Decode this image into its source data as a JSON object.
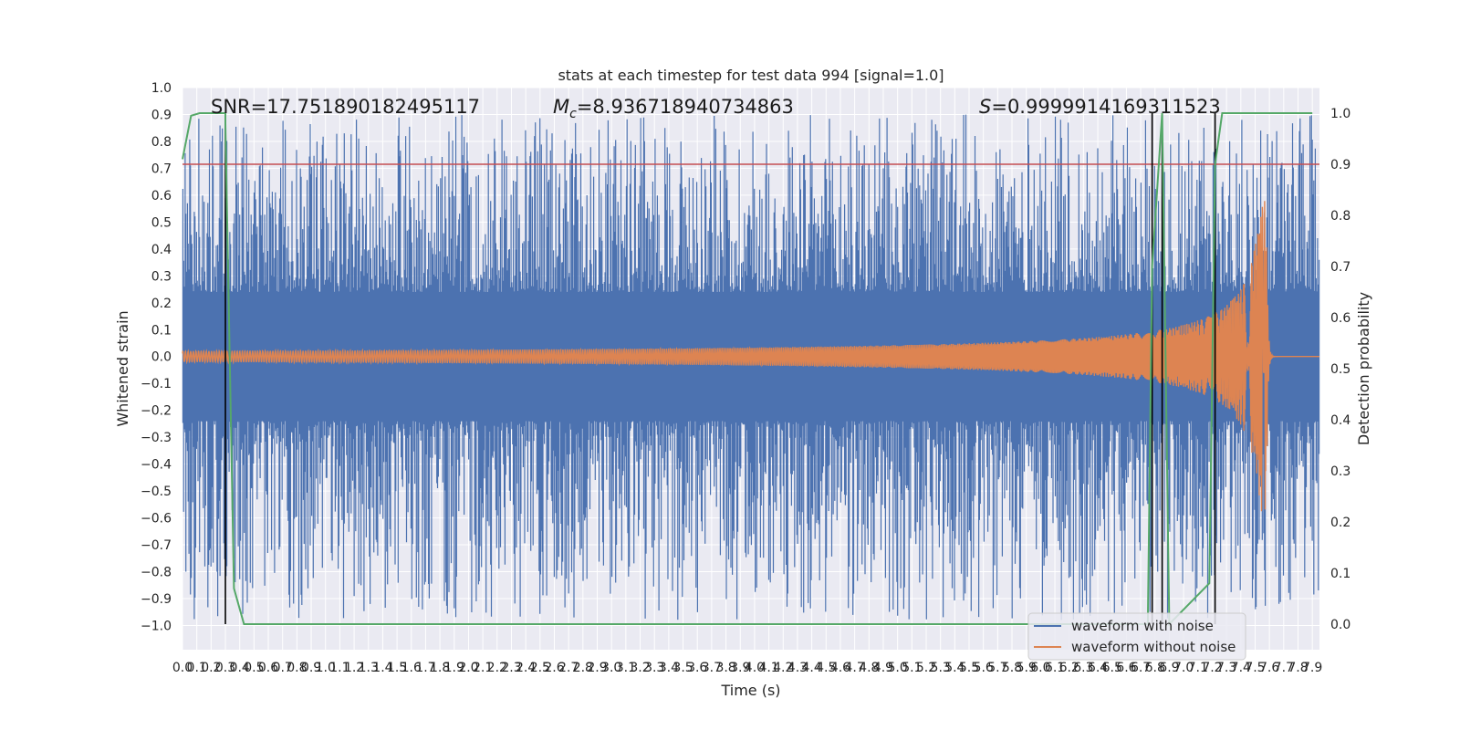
{
  "chart_data": {
    "type": "line",
    "title": "stats at each timestep for test data 994 [signal=1.0]",
    "xlabel": "Time (s)",
    "ylabel_left": "Whitened strain",
    "ylabel_right": "Detection probability",
    "xlim": [
      0,
      7.95
    ],
    "ylim_left": [
      -1.09,
      1.0
    ],
    "ylim_right": [
      -0.05,
      1.05
    ],
    "x_ticks": [
      "0.0",
      "0.1",
      "0.2",
      "0.3",
      "0.4",
      "0.5",
      "0.6",
      "0.7",
      "0.8",
      "0.9",
      "1.0",
      "1.1",
      "1.2",
      "1.3",
      "1.4",
      "1.5",
      "1.6",
      "1.7",
      "1.8",
      "1.9",
      "2.0",
      "2.1",
      "2.2",
      "2.3",
      "2.4",
      "2.5",
      "2.6",
      "2.7",
      "2.8",
      "2.9",
      "3.0",
      "3.1",
      "3.2",
      "3.3",
      "3.4",
      "3.5",
      "3.6",
      "3.7",
      "3.8",
      "3.9",
      "4.0",
      "4.1",
      "4.2",
      "4.3",
      "4.4",
      "4.5",
      "4.6",
      "4.7",
      "4.8",
      "4.9",
      "5.0",
      "5.1",
      "5.2",
      "5.3",
      "5.4",
      "5.5",
      "5.6",
      "5.7",
      "5.8",
      "5.9",
      "6.0",
      "6.1",
      "6.2",
      "6.3",
      "6.4",
      "6.5",
      "6.6",
      "6.7",
      "6.8",
      "6.9",
      "7.0",
      "7.1",
      "7.2",
      "7.3",
      "7.4",
      "7.5",
      "7.6",
      "7.7",
      "7.8",
      "7.9"
    ],
    "y_ticks_left": [
      "1.0",
      "0.9",
      "0.8",
      "0.7",
      "0.6",
      "0.5",
      "0.4",
      "0.3",
      "0.2",
      "0.1",
      "0.0",
      "−0.1",
      "−0.2",
      "−0.3",
      "−0.4",
      "−0.5",
      "−0.6",
      "−0.7",
      "−0.8",
      "−0.9",
      "−1.0"
    ],
    "y_ticks_right": [
      "1.0",
      "0.9",
      "0.8",
      "0.7",
      "0.6",
      "0.5",
      "0.4",
      "0.3",
      "0.2",
      "0.1",
      "0.0"
    ],
    "annotations": {
      "snr": "SNR=17.751890182495117",
      "mc": "=8.936718940734863",
      "mc_symbol": "M",
      "mc_sub": "c",
      "s": "=0.9999914169311523",
      "s_symbol": "S"
    },
    "threshold_right": 0.9,
    "vertical_markers_x": [
      0.3,
      6.78,
      6.85,
      7.22
    ],
    "series": [
      {
        "name": "waveform with noise",
        "color": "#4c72b0",
        "envelope_core": 0.24,
        "peak_max": 0.9
      },
      {
        "name": "waveform without noise",
        "color": "#dd8452",
        "chirp_start_amp": 0.02,
        "merger_x": 7.58,
        "merger_amp": 0.58
      },
      {
        "color": "#55a868",
        "axis": "right",
        "x": [
          0.0,
          0.06,
          0.12,
          0.3,
          0.3,
          0.36,
          0.43,
          6.75,
          6.78,
          6.85,
          6.9,
          7.18,
          7.22,
          7.27,
          7.9
        ],
        "values": [
          0.91,
          0.995,
          1.0,
          1.0,
          0.98,
          0.07,
          0.0,
          0.0,
          0.7,
          1.0,
          0.0,
          0.08,
          0.9,
          1.0,
          1.0
        ]
      }
    ],
    "legend_location": "lower-right",
    "grid": true
  }
}
